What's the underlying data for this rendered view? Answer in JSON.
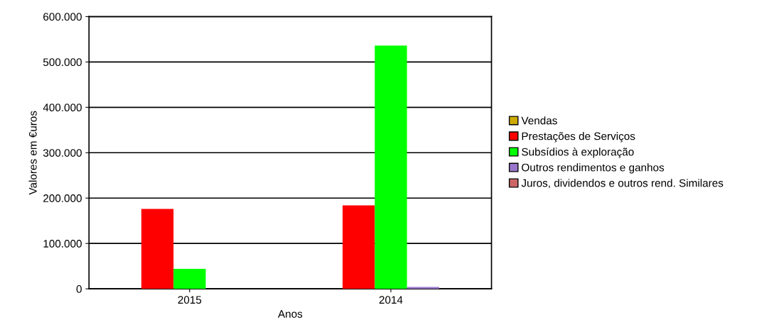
{
  "chart_data": {
    "type": "bar",
    "xlabel": "Anos",
    "ylabel": "Valores em €uros",
    "categories": [
      "2015",
      "2014"
    ],
    "series": [
      {
        "name": "Vendas",
        "color": "#ccaa00",
        "values": [
          null,
          null
        ]
      },
      {
        "name": "Prestações de Serviços",
        "color": "#ff0000",
        "values": [
          176000,
          184000
        ]
      },
      {
        "name": "Subsídios à exploração",
        "color": "#00ff00",
        "values": [
          44000,
          536000
        ]
      },
      {
        "name": "Outros rendimentos e ganhos",
        "color": "#9977cc",
        "values": [
          null,
          4000
        ]
      },
      {
        "name": "Juros, dividendos e outros rend. Similares",
        "color": "#cc6666",
        "values": [
          null,
          null
        ]
      }
    ],
    "ylim": [
      0,
      600000
    ],
    "yticks": [
      {
        "value": 0,
        "label": "0"
      },
      {
        "value": 100000,
        "label": "100.000"
      },
      {
        "value": 200000,
        "label": "200.000"
      },
      {
        "value": 300000,
        "label": "300.000"
      },
      {
        "value": 400000,
        "label": "400.000"
      },
      {
        "value": 500000,
        "label": "500.000"
      },
      {
        "value": 600000,
        "label": "600.000"
      }
    ],
    "grid": "y",
    "legend": "right"
  }
}
